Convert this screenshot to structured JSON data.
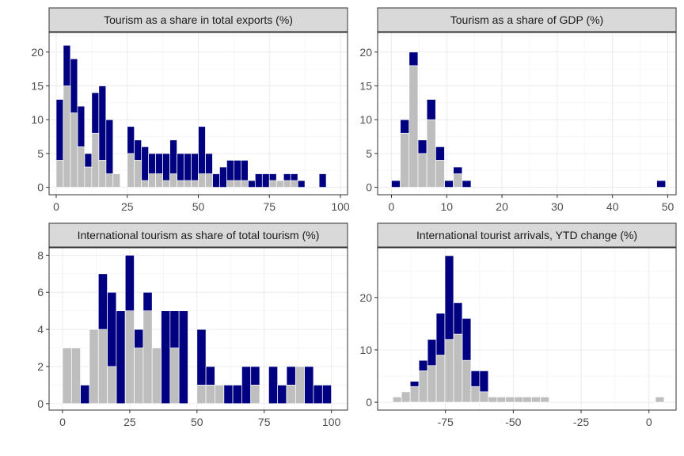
{
  "chart_data": [
    {
      "type": "bar",
      "title": "Tourism as a share in total exports (%)",
      "xlim": [
        -2.5,
        102.5
      ],
      "ylim": [
        -1.1,
        22.9
      ],
      "xticks": [
        0,
        25,
        50,
        75,
        100
      ],
      "xtick_labels": [
        "0",
        "25",
        "50",
        "75",
        "100"
      ],
      "yticks": [
        0,
        5,
        10,
        15,
        20
      ],
      "ytick_labels": [
        "0",
        "5",
        "10",
        "15",
        "20"
      ],
      "binwidth": 2.5,
      "series": [
        {
          "color": "#000080",
          "values": [
            [
              0,
              13
            ],
            [
              2.5,
              21
            ],
            [
              5,
              19
            ],
            [
              7.5,
              12
            ],
            [
              10,
              5
            ],
            [
              12.5,
              14
            ],
            [
              15,
              15
            ],
            [
              17.5,
              10
            ],
            [
              20,
              1
            ],
            [
              25,
              9
            ],
            [
              27.5,
              7
            ],
            [
              30,
              6
            ],
            [
              32.5,
              5
            ],
            [
              35,
              5
            ],
            [
              37.5,
              5
            ],
            [
              40,
              7
            ],
            [
              42.5,
              5
            ],
            [
              45,
              5
            ],
            [
              47.5,
              5
            ],
            [
              50,
              9
            ],
            [
              52.5,
              5
            ],
            [
              55,
              2
            ],
            [
              57.5,
              3
            ],
            [
              60,
              4
            ],
            [
              62.5,
              4
            ],
            [
              65,
              4
            ],
            [
              67.5,
              1
            ],
            [
              70,
              2
            ],
            [
              72.5,
              2
            ],
            [
              75,
              2
            ],
            [
              77.5,
              1
            ],
            [
              80,
              2
            ],
            [
              82.5,
              2
            ],
            [
              85,
              1
            ],
            [
              92.5,
              2
            ]
          ]
        },
        {
          "color": "#BEBEBE",
          "values": [
            [
              0,
              4
            ],
            [
              2.5,
              15
            ],
            [
              5,
              11
            ],
            [
              7.5,
              6
            ],
            [
              10,
              3
            ],
            [
              12.5,
              8
            ],
            [
              15,
              4
            ],
            [
              17.5,
              2
            ],
            [
              20,
              2
            ],
            [
              25,
              5
            ],
            [
              27.5,
              4
            ],
            [
              30,
              1
            ],
            [
              32.5,
              2
            ],
            [
              35,
              2
            ],
            [
              37.5,
              1
            ],
            [
              40,
              2
            ],
            [
              42.5,
              1
            ],
            [
              45,
              1
            ],
            [
              47.5,
              1
            ],
            [
              50,
              2
            ],
            [
              52.5,
              2
            ],
            [
              60,
              1
            ],
            [
              62.5,
              1
            ],
            [
              65,
              1
            ],
            [
              75,
              1
            ],
            [
              77.5,
              1
            ],
            [
              80,
              1
            ],
            [
              82.5,
              1
            ]
          ]
        }
      ]
    },
    {
      "type": "bar",
      "title": "Tourism as a share of GDP (%)",
      "xlim": [
        -2.5,
        51.5
      ],
      "ylim": [
        -1.1,
        22.9
      ],
      "xticks": [
        0,
        10,
        20,
        30,
        40,
        50
      ],
      "xtick_labels": [
        "0",
        "10",
        "20",
        "30",
        "40",
        "50"
      ],
      "yticks": [
        0,
        5,
        10,
        15,
        20
      ],
      "ytick_labels": [
        "0",
        "5",
        "10",
        "15",
        "20"
      ],
      "binwidth": 1.6,
      "series": [
        {
          "color": "#000080",
          "values": [
            [
              0.0,
              1
            ],
            [
              1.6,
              10
            ],
            [
              3.2,
              20
            ],
            [
              4.8,
              7
            ],
            [
              6.4,
              13
            ],
            [
              8.0,
              6
            ],
            [
              9.6,
              1
            ],
            [
              11.2,
              3
            ],
            [
              12.8,
              1
            ],
            [
              48.0,
              1
            ]
          ]
        },
        {
          "color": "#BEBEBE",
          "values": [
            [
              1.6,
              8
            ],
            [
              3.2,
              18
            ],
            [
              4.8,
              5
            ],
            [
              6.4,
              10
            ],
            [
              8.0,
              4
            ],
            [
              11.2,
              2
            ]
          ]
        }
      ]
    },
    {
      "type": "bar",
      "title": "International tourism as share of total tourism (%)",
      "xlim": [
        -5,
        106
      ],
      "ylim": [
        -0.35,
        8.4
      ],
      "xticks": [
        0,
        25,
        50,
        75,
        100
      ],
      "xtick_labels": [
        "0",
        "25",
        "50",
        "75",
        "100"
      ],
      "yticks": [
        0,
        2,
        4,
        6,
        8
      ],
      "ytick_labels": [
        "0",
        "2",
        "4",
        "6",
        "8"
      ],
      "binwidth": 3.33,
      "series": [
        {
          "color": "#000080",
          "values": [
            [
              6.67,
              1
            ],
            [
              10,
              4
            ],
            [
              13.33,
              7
            ],
            [
              16.67,
              6
            ],
            [
              20,
              5
            ],
            [
              23.33,
              8
            ],
            [
              26.67,
              4
            ],
            [
              30,
              6
            ],
            [
              33.33,
              3
            ],
            [
              36.67,
              5
            ],
            [
              40,
              5
            ],
            [
              43.33,
              5
            ],
            [
              50,
              4
            ],
            [
              53.33,
              2
            ],
            [
              60,
              1
            ],
            [
              63.33,
              1
            ],
            [
              66.67,
              2
            ],
            [
              70,
              2
            ],
            [
              76.67,
              2
            ],
            [
              80,
              1
            ],
            [
              83.33,
              2
            ],
            [
              86.67,
              2
            ],
            [
              90,
              2
            ],
            [
              93.33,
              1
            ],
            [
              96.67,
              1
            ]
          ]
        },
        {
          "color": "#BEBEBE",
          "values": [
            [
              0,
              3
            ],
            [
              3.33,
              3
            ],
            [
              10,
              4
            ],
            [
              13.33,
              4
            ],
            [
              16.67,
              2
            ],
            [
              23.33,
              5
            ],
            [
              26.67,
              3
            ],
            [
              30,
              5
            ],
            [
              33.33,
              3
            ],
            [
              40,
              3
            ],
            [
              50,
              1
            ],
            [
              53.33,
              1
            ],
            [
              56.67,
              1
            ],
            [
              70,
              1
            ],
            [
              83.33,
              1
            ],
            [
              86.67,
              2
            ]
          ]
        }
      ]
    },
    {
      "type": "bar",
      "title": "International tourist arrivals, YTD change (%)",
      "xlim": [
        -100,
        10
      ],
      "ylim": [
        -1.5,
        29.5
      ],
      "xticks": [
        -75,
        -50,
        -25,
        0
      ],
      "xtick_labels": [
        "-75",
        "-50",
        "-25",
        "0"
      ],
      "yticks": [
        0,
        10,
        20
      ],
      "ytick_labels": [
        "0",
        "10",
        "20"
      ],
      "binwidth": 3.2,
      "series": [
        {
          "color": "#000080",
          "values": [
            [
              -91.2,
              1
            ],
            [
              -88,
              4
            ],
            [
              -84.8,
              8
            ],
            [
              -81.6,
              12
            ],
            [
              -78.4,
              17
            ],
            [
              -75.2,
              28
            ],
            [
              -72,
              19
            ],
            [
              -68.8,
              16
            ],
            [
              -65.6,
              6
            ],
            [
              -62.4,
              6
            ],
            [
              -52.8,
              1
            ],
            [
              -49.6,
              1
            ],
            [
              -46.4,
              1
            ],
            [
              -43.2,
              1
            ],
            [
              -40,
              1
            ]
          ]
        },
        {
          "color": "#BEBEBE",
          "values": [
            [
              -94.4,
              1
            ],
            [
              -91.2,
              2
            ],
            [
              -88,
              3
            ],
            [
              -84.8,
              6
            ],
            [
              -81.6,
              7
            ],
            [
              -78.4,
              9
            ],
            [
              -75.2,
              12
            ],
            [
              -72,
              13
            ],
            [
              -68.8,
              8
            ],
            [
              -65.6,
              3
            ],
            [
              -62.4,
              2
            ],
            [
              -59.2,
              1
            ],
            [
              -56,
              1
            ],
            [
              -52.8,
              1
            ],
            [
              -49.6,
              1
            ],
            [
              -46.4,
              1
            ],
            [
              -43.2,
              1
            ],
            [
              -40,
              1
            ],
            [
              2.4,
              1
            ]
          ]
        }
      ]
    }
  ]
}
